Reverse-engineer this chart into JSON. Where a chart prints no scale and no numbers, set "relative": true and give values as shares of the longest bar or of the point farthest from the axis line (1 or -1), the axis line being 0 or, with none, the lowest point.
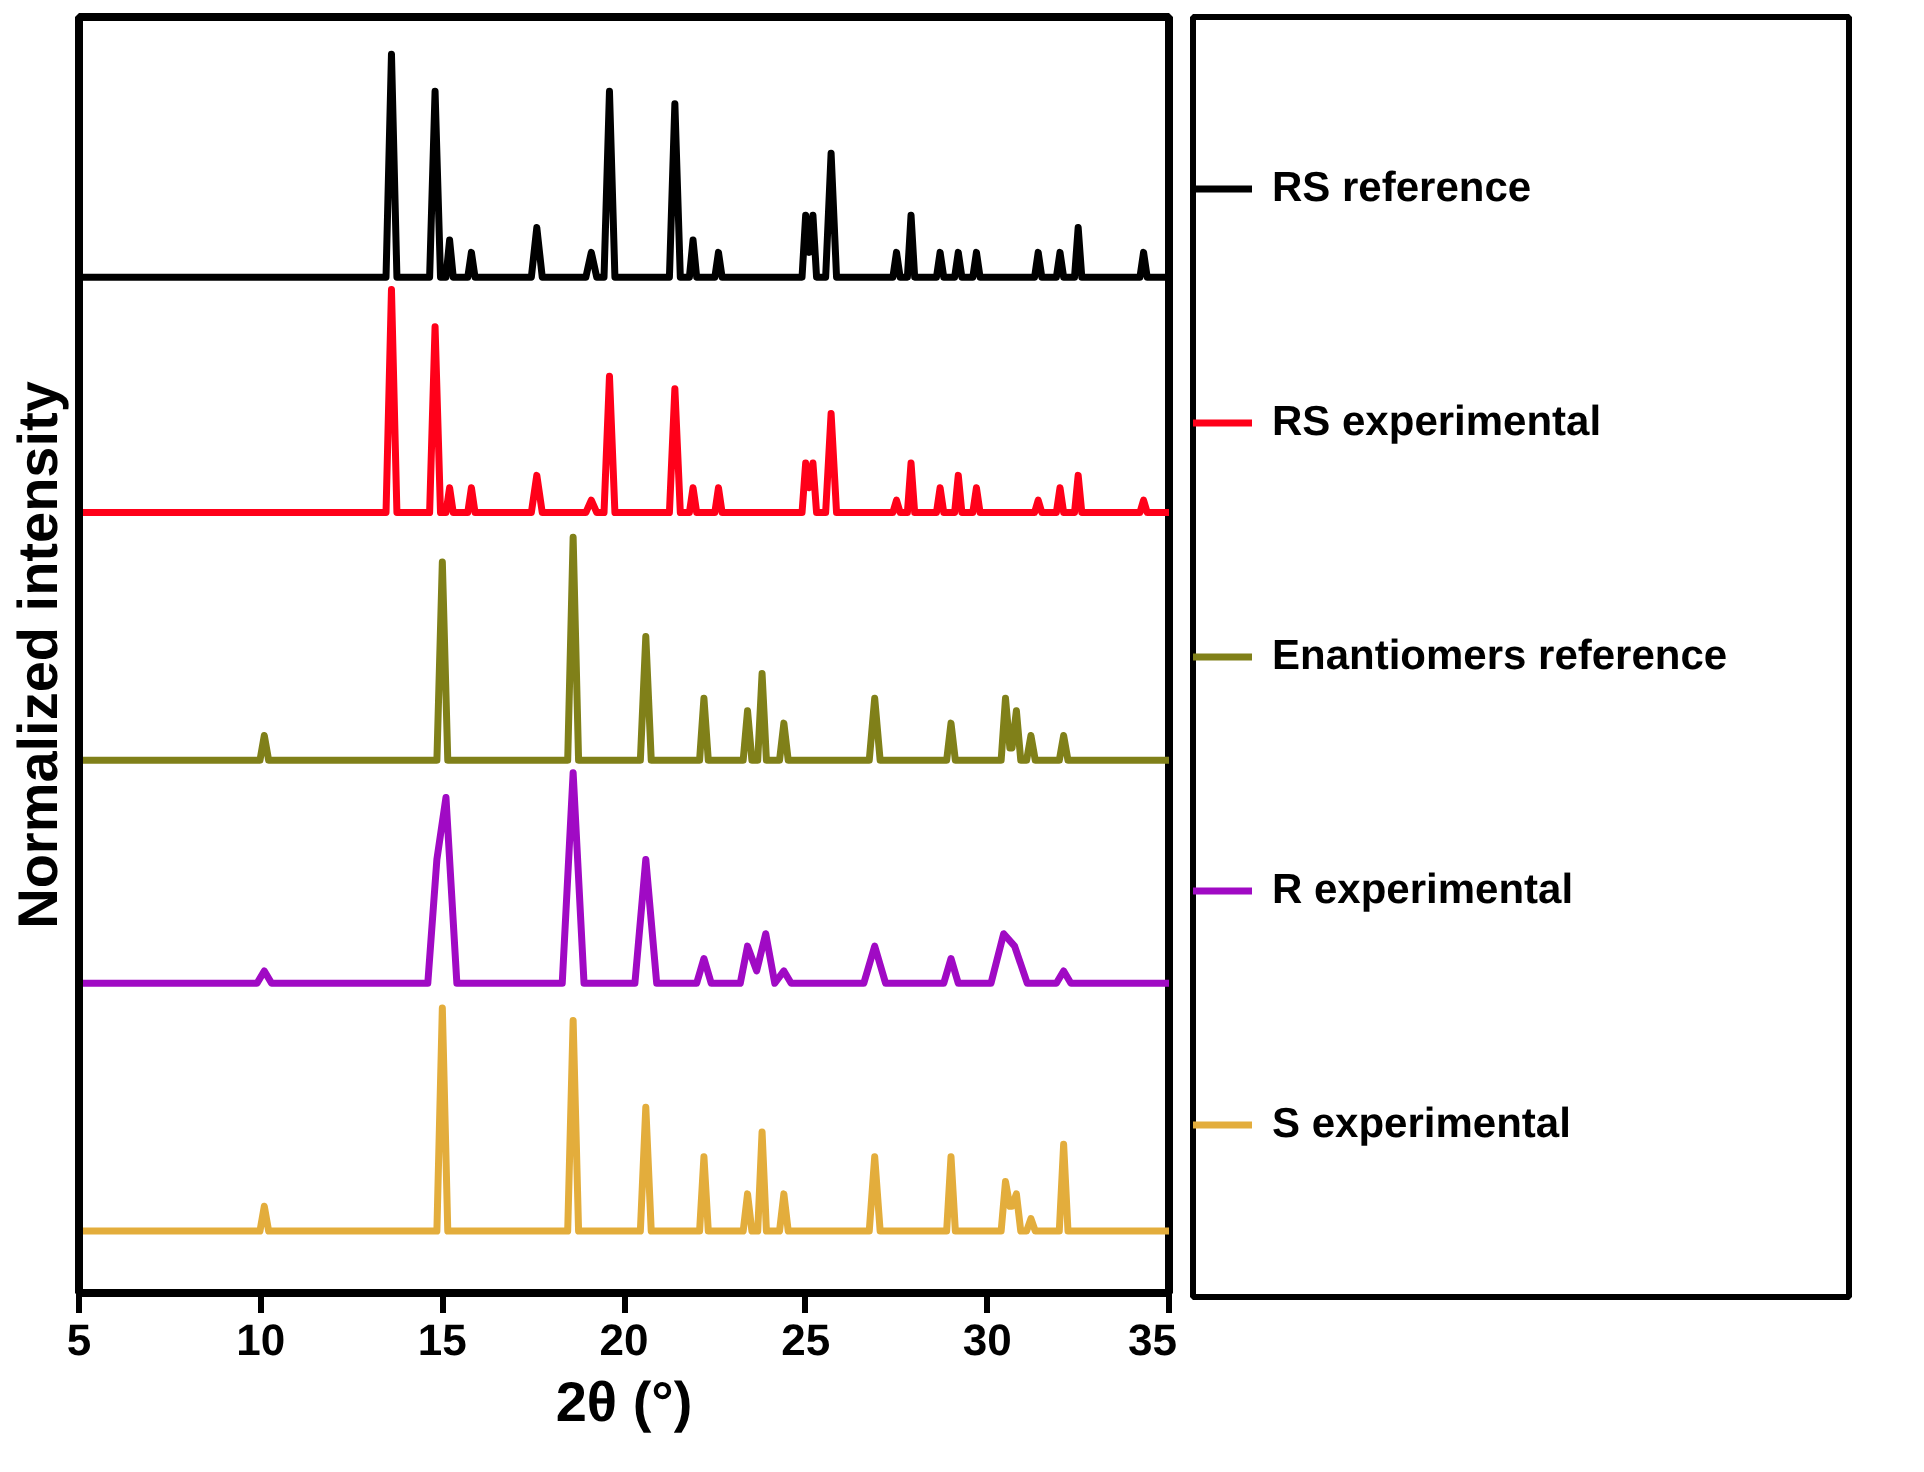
{
  "chart_data": {
    "type": "line",
    "relative": true,
    "xlabel": "2θ (°)",
    "ylabel": "Normalized intensity",
    "xlim": [
      5,
      35
    ],
    "xticks": [
      5,
      10,
      15,
      20,
      25,
      30,
      35
    ],
    "grid": false,
    "legend": "right",
    "marker": "none",
    "line_style": "solid",
    "series": [
      {
        "name": "RS reference",
        "color": "#000000",
        "x": [
          5,
          13.45,
          13.6,
          13.75,
          14.65,
          14.8,
          14.95,
          15.1,
          15.2,
          15.3,
          15.7,
          15.8,
          15.9,
          17.45,
          17.6,
          17.75,
          18.95,
          19.1,
          19.25,
          19.45,
          19.6,
          19.75,
          21.25,
          21.4,
          21.55,
          21.8,
          21.9,
          22.0,
          22.5,
          22.6,
          22.7,
          24.9,
          25.0,
          25.1,
          25.2,
          25.3,
          25.55,
          25.7,
          25.85,
          27.4,
          27.5,
          27.6,
          27.8,
          27.9,
          28.0,
          28.6,
          28.7,
          28.8,
          29.1,
          29.2,
          29.3,
          29.6,
          29.7,
          29.8,
          31.3,
          31.4,
          31.5,
          31.9,
          32.0,
          32.1,
          32.4,
          32.5,
          32.6,
          34.2,
          34.3,
          34.4,
          35
        ],
        "values": [
          0.82,
          0.82,
          1.0,
          0.82,
          0.82,
          0.97,
          0.82,
          0.82,
          0.85,
          0.82,
          0.82,
          0.84,
          0.82,
          0.82,
          0.86,
          0.82,
          0.82,
          0.84,
          0.82,
          0.82,
          0.97,
          0.82,
          0.82,
          0.96,
          0.82,
          0.82,
          0.85,
          0.82,
          0.82,
          0.84,
          0.82,
          0.82,
          0.87,
          0.84,
          0.87,
          0.82,
          0.82,
          0.92,
          0.82,
          0.82,
          0.84,
          0.82,
          0.82,
          0.87,
          0.82,
          0.82,
          0.84,
          0.82,
          0.82,
          0.84,
          0.82,
          0.82,
          0.84,
          0.82,
          0.82,
          0.84,
          0.82,
          0.82,
          0.84,
          0.82,
          0.82,
          0.86,
          0.82,
          0.82,
          0.84,
          0.82,
          0.82
        ]
      },
      {
        "name": "RS experimental",
        "color": "#ff0019",
        "x": [
          5,
          13.45,
          13.6,
          13.75,
          14.65,
          14.8,
          14.95,
          15.1,
          15.2,
          15.3,
          15.7,
          15.8,
          15.9,
          17.45,
          17.6,
          17.75,
          18.95,
          19.1,
          19.25,
          19.45,
          19.6,
          19.75,
          21.25,
          21.4,
          21.55,
          21.8,
          21.9,
          22.0,
          22.5,
          22.6,
          22.7,
          24.9,
          25.0,
          25.1,
          25.2,
          25.3,
          25.55,
          25.7,
          25.85,
          27.4,
          27.5,
          27.6,
          27.8,
          27.9,
          28.0,
          28.6,
          28.7,
          28.8,
          29.1,
          29.2,
          29.3,
          29.6,
          29.7,
          29.8,
          31.3,
          31.4,
          31.5,
          31.9,
          32.0,
          32.1,
          32.4,
          32.5,
          32.6,
          34.2,
          34.3,
          34.4,
          35
        ],
        "values": [
          0.63,
          0.63,
          0.81,
          0.63,
          0.63,
          0.78,
          0.63,
          0.63,
          0.65,
          0.63,
          0.63,
          0.65,
          0.63,
          0.63,
          0.66,
          0.63,
          0.63,
          0.64,
          0.63,
          0.63,
          0.74,
          0.63,
          0.63,
          0.73,
          0.63,
          0.63,
          0.65,
          0.63,
          0.63,
          0.65,
          0.63,
          0.63,
          0.67,
          0.65,
          0.67,
          0.63,
          0.63,
          0.71,
          0.63,
          0.63,
          0.64,
          0.63,
          0.63,
          0.67,
          0.63,
          0.63,
          0.65,
          0.63,
          0.63,
          0.66,
          0.63,
          0.63,
          0.65,
          0.63,
          0.63,
          0.64,
          0.63,
          0.63,
          0.65,
          0.63,
          0.63,
          0.66,
          0.63,
          0.63,
          0.64,
          0.63,
          0.63
        ]
      },
      {
        "name": "Enantiomers reference",
        "color": "#808019",
        "x": [
          5,
          9.98,
          10.1,
          10.22,
          14.85,
          15.0,
          15.15,
          18.45,
          18.6,
          18.75,
          20.45,
          20.6,
          20.75,
          22.08,
          22.2,
          22.32,
          23.28,
          23.4,
          23.52,
          23.68,
          23.8,
          23.92,
          24.28,
          24.4,
          24.52,
          26.75,
          26.9,
          27.05,
          28.88,
          29.0,
          29.12,
          30.38,
          30.5,
          30.62,
          30.68,
          30.8,
          30.92,
          31.08,
          31.2,
          31.32,
          31.98,
          32.1,
          32.22,
          35
        ],
        "values": [
          0.43,
          0.43,
          0.45,
          0.43,
          0.43,
          0.59,
          0.43,
          0.43,
          0.61,
          0.43,
          0.43,
          0.53,
          0.43,
          0.43,
          0.48,
          0.43,
          0.43,
          0.47,
          0.43,
          0.43,
          0.5,
          0.43,
          0.43,
          0.46,
          0.43,
          0.43,
          0.48,
          0.43,
          0.43,
          0.46,
          0.43,
          0.43,
          0.48,
          0.44,
          0.44,
          0.47,
          0.43,
          0.43,
          0.45,
          0.43,
          0.43,
          0.45,
          0.43,
          0.43
        ]
      },
      {
        "name": "R experimental",
        "color": "#a00ac4",
        "x": [
          5,
          9.9,
          10.1,
          10.3,
          14.6,
          14.85,
          15.1,
          15.4,
          18.3,
          18.6,
          18.9,
          20.3,
          20.6,
          20.9,
          22.0,
          22.2,
          22.4,
          23.2,
          23.4,
          23.65,
          23.9,
          24.15,
          24.4,
          24.6,
          26.6,
          26.9,
          27.2,
          28.8,
          29.0,
          29.2,
          30.1,
          30.45,
          30.75,
          31.1,
          31.9,
          32.1,
          32.3,
          35
        ],
        "values": [
          0.25,
          0.25,
          0.26,
          0.25,
          0.25,
          0.35,
          0.4,
          0.25,
          0.25,
          0.42,
          0.25,
          0.25,
          0.35,
          0.25,
          0.25,
          0.27,
          0.25,
          0.25,
          0.28,
          0.26,
          0.29,
          0.25,
          0.26,
          0.25,
          0.25,
          0.28,
          0.25,
          0.25,
          0.27,
          0.25,
          0.25,
          0.29,
          0.28,
          0.25,
          0.25,
          0.26,
          0.25,
          0.25
        ]
      },
      {
        "name": "S experimental",
        "color": "#e3ad3c",
        "x": [
          5,
          9.98,
          10.1,
          10.22,
          14.85,
          15.0,
          15.15,
          18.45,
          18.6,
          18.75,
          20.45,
          20.6,
          20.75,
          22.08,
          22.2,
          22.32,
          23.28,
          23.4,
          23.52,
          23.68,
          23.8,
          23.92,
          24.28,
          24.4,
          24.52,
          26.75,
          26.9,
          27.05,
          28.88,
          29.0,
          29.12,
          30.38,
          30.5,
          30.62,
          30.68,
          30.8,
          30.92,
          31.08,
          31.2,
          31.32,
          31.98,
          32.1,
          32.22,
          35
        ],
        "values": [
          0.05,
          0.05,
          0.07,
          0.05,
          0.05,
          0.23,
          0.05,
          0.05,
          0.22,
          0.05,
          0.05,
          0.15,
          0.05,
          0.05,
          0.11,
          0.05,
          0.05,
          0.08,
          0.05,
          0.05,
          0.13,
          0.05,
          0.05,
          0.08,
          0.05,
          0.05,
          0.11,
          0.05,
          0.05,
          0.11,
          0.05,
          0.05,
          0.09,
          0.07,
          0.07,
          0.08,
          0.05,
          0.05,
          0.06,
          0.05,
          0.05,
          0.12,
          0.05,
          0.05
        ]
      }
    ]
  }
}
